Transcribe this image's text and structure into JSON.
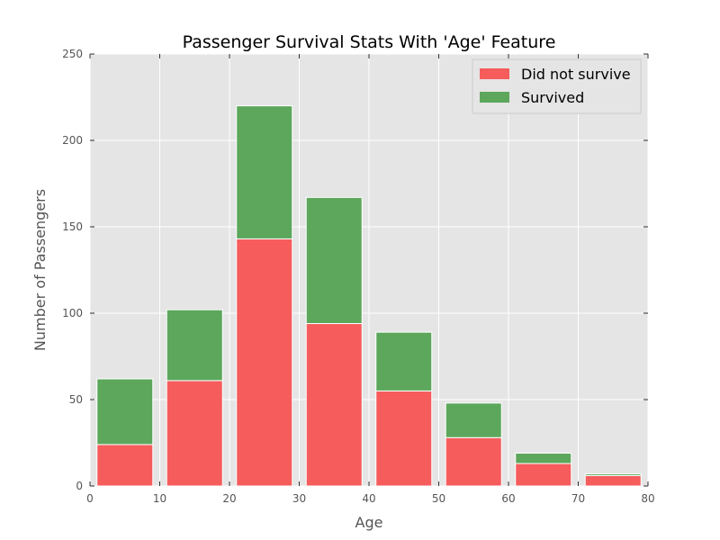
{
  "chart_data": {
    "type": "bar",
    "stacked": true,
    "title": "Passenger Survival Stats With 'Age' Feature",
    "xlabel": "Age",
    "ylabel": "Number of Passengers",
    "xlim": [
      0,
      80
    ],
    "ylim": [
      0,
      250
    ],
    "xticks": [
      0,
      10,
      20,
      30,
      40,
      50,
      60,
      70,
      80
    ],
    "yticks": [
      0,
      50,
      100,
      150,
      200,
      250
    ],
    "grid": true,
    "legend_position": "top-right",
    "bins": [
      {
        "start": 1,
        "end": 9
      },
      {
        "start": 11,
        "end": 19
      },
      {
        "start": 21,
        "end": 29
      },
      {
        "start": 31,
        "end": 39
      },
      {
        "start": 41,
        "end": 49
      },
      {
        "start": 51,
        "end": 59
      },
      {
        "start": 61,
        "end": 69
      },
      {
        "start": 71,
        "end": 79
      }
    ],
    "series": [
      {
        "name": "Did not survive",
        "color": "#f65c5c",
        "values": [
          24,
          61,
          143,
          94,
          55,
          28,
          13,
          6
        ]
      },
      {
        "name": "Survived",
        "color": "#5ca75c",
        "values": [
          38,
          41,
          77,
          73,
          34,
          20,
          6,
          1
        ]
      }
    ],
    "colors": {
      "background": "#e5e5e5",
      "grid": "#ffffff",
      "edge": "#ffffff"
    }
  }
}
